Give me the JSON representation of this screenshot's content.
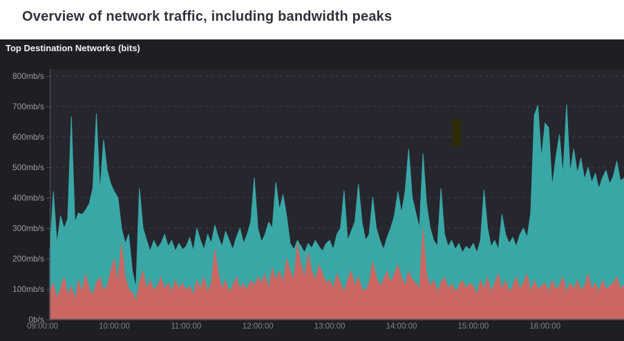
{
  "page": {
    "title": "Overview of network traffic, including bandwidth peaks"
  },
  "panel": {
    "title": "Top Destination Networks (bits)"
  },
  "chart_data": {
    "type": "area",
    "title": "Top Destination Networks (bits)",
    "unit": "mb/s",
    "grid": "horizontal-dashed",
    "legend": "none",
    "ylim": [
      0,
      822
    ],
    "x_start": "09:06:00",
    "x_end": "17:06:00",
    "x_step_minutes": 3,
    "x_ticks": [
      "09:00:00",
      "10:00:00",
      "11:00:00",
      "12:00:00",
      "13:00:00",
      "14:00:00",
      "15:00:00",
      "16:00:00"
    ],
    "y_ticks": [
      {
        "label": "0b/s",
        "value": 0
      },
      {
        "label": "100mb/s",
        "value": 100
      },
      {
        "label": "200mb/s",
        "value": 200
      },
      {
        "label": "300mb/s",
        "value": 300
      },
      {
        "label": "400mb/s",
        "value": 400
      },
      {
        "label": "500mb/s",
        "value": 500
      },
      {
        "label": "600mb/s",
        "value": 600
      },
      {
        "label": "700mb/s",
        "value": 700
      },
      {
        "label": "800mb/s",
        "value": 800
      }
    ],
    "annotation": {
      "name": "highlight-marker",
      "color": "#2e2b0a",
      "time_start": "14:42:00",
      "time_end": "14:50:00",
      "value_min": 568,
      "value_max": 660
    },
    "series": [
      {
        "name": "series-teal",
        "color": "#39a7a5",
        "values": [
          225,
          420,
          250,
          340,
          300,
          330,
          666,
          320,
          350,
          345,
          360,
          380,
          430,
          675,
          420,
          590,
          490,
          445,
          420,
          400,
          300,
          250,
          280,
          160,
          105,
          430,
          300,
          260,
          225,
          260,
          235,
          250,
          280,
          240,
          260,
          225,
          250,
          230,
          240,
          270,
          225,
          300,
          260,
          230,
          280,
          250,
          310,
          270,
          240,
          290,
          260,
          230,
          270,
          300,
          250,
          280,
          320,
          465,
          300,
          255,
          280,
          320,
          300,
          450,
          360,
          410,
          340,
          250,
          230,
          260,
          240,
          220,
          250,
          235,
          260,
          240,
          225,
          250,
          260,
          230,
          280,
          300,
          423,
          260,
          290,
          320,
          444,
          320,
          260,
          280,
          402,
          300,
          260,
          230,
          270,
          300,
          340,
          420,
          350,
          420,
          560,
          400,
          350,
          300,
          545,
          380,
          300,
          260,
          240,
          430,
          280,
          240,
          260,
          230,
          250,
          220,
          240,
          230,
          250,
          220,
          260,
          425,
          300,
          240,
          260,
          230,
          345,
          280,
          250,
          270,
          240,
          280,
          300,
          270,
          350,
          671,
          703,
          530,
          645,
          630,
          436,
          531,
          607,
          474,
          705,
          482,
          560,
          480,
          530,
          460,
          500,
          450,
          480,
          430,
          465,
          490,
          445,
          470,
          520,
          455,
          465
        ]
      },
      {
        "name": "series-red",
        "color": "#ca6762",
        "values": [
          90,
          120,
          70,
          100,
          140,
          80,
          110,
          65,
          130,
          90,
          150,
          100,
          80,
          120,
          140,
          95,
          110,
          160,
          200,
          120,
          250,
          140,
          100,
          90,
          60,
          120,
          160,
          100,
          130,
          95,
          110,
          140,
          100,
          120,
          90,
          130,
          100,
          120,
          95,
          110,
          80,
          130,
          100,
          140,
          90,
          120,
          230,
          150,
          100,
          130,
          90,
          110,
          140,
          100,
          120,
          95,
          130,
          110,
          140,
          120,
          150,
          100,
          170,
          130,
          160,
          120,
          200,
          160,
          130,
          250,
          180,
          140,
          220,
          160,
          130,
          180,
          150,
          120,
          130,
          100,
          150,
          120,
          90,
          130,
          160,
          110,
          140,
          100,
          95,
          120,
          190,
          140,
          110,
          130,
          160,
          120,
          150,
          180,
          140,
          110,
          160,
          130,
          120,
          100,
          300,
          150,
          110,
          130,
          90,
          120,
          140,
          100,
          120,
          90,
          110,
          130,
          100,
          120,
          110,
          80,
          130,
          100,
          140,
          90,
          120,
          150,
          100,
          130,
          90,
          110,
          140,
          100,
          120,
          150,
          90,
          130,
          100,
          110,
          120,
          90,
          130,
          100,
          110,
          140,
          90,
          120,
          100,
          130,
          95,
          110,
          150,
          100,
          120,
          90,
          130,
          100,
          110,
          120,
          140,
          100,
          115
        ]
      }
    ]
  }
}
